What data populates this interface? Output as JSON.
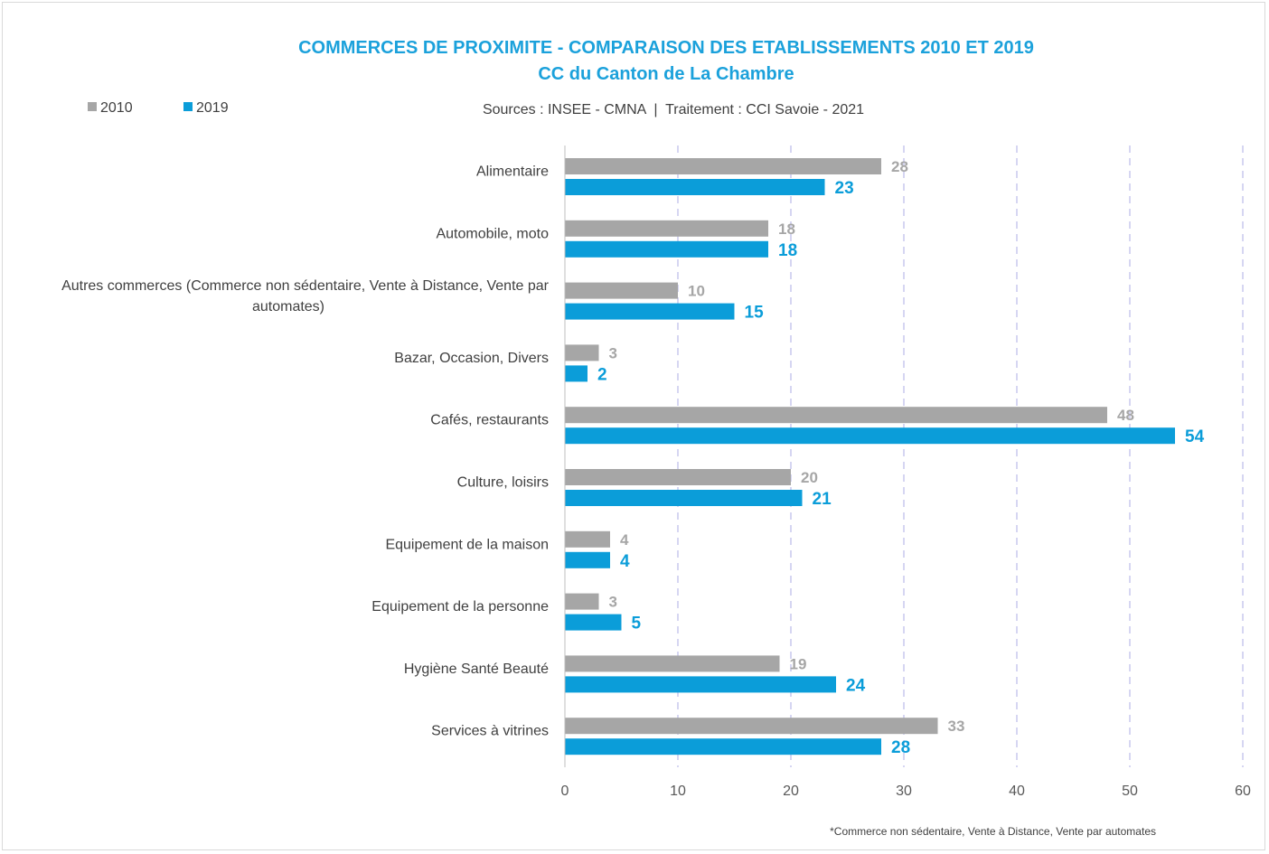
{
  "chart_data": {
    "type": "bar",
    "orientation": "horizontal",
    "title": "COMMERCES DE PROXIMITE - COMPARAISON DES ETABLISSEMENTS 2010 ET 2019",
    "subtitle": "CC du Canton de La Chambre",
    "source_note": "Sources : INSEE - CMNA  |  Traitement : CCI Savoie - 2021",
    "footnote": "*Commerce non sédentaire, Vente à Distance, Vente par automates",
    "categories": [
      [
        "Alimentaire"
      ],
      [
        "Automobile, moto"
      ],
      [
        "Autres commerces (Commerce non sédentaire, Vente à Distance, Vente par",
        "automates)"
      ],
      [
        "Bazar, Occasion, Divers"
      ],
      [
        "Cafés, restaurants"
      ],
      [
        "Culture, loisirs"
      ],
      [
        "Equipement de la maison"
      ],
      [
        "Equipement de la personne"
      ],
      [
        "Hygiène Santé Beauté"
      ],
      [
        "Services à vitrines"
      ]
    ],
    "series": [
      {
        "name": "2010",
        "color": "#a6a6a6",
        "values": [
          28,
          18,
          10,
          3,
          48,
          20,
          4,
          3,
          19,
          33
        ]
      },
      {
        "name": "2019",
        "color": "#0b9dd9",
        "values": [
          23,
          18,
          15,
          2,
          54,
          21,
          4,
          5,
          24,
          28
        ]
      }
    ],
    "xlim": [
      0,
      60
    ],
    "xticks": [
      0,
      10,
      20,
      30,
      40,
      50,
      60
    ],
    "grid": "vertical dashed",
    "legend": "top-left"
  }
}
